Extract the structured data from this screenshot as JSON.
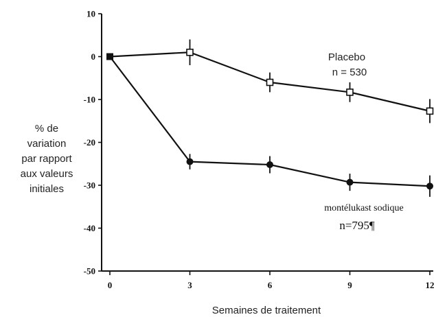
{
  "chart_data": {
    "type": "line",
    "xlabel": "Semaines de traitement",
    "ylabel_lines": [
      "% de",
      "variation",
      "par rapport",
      "aux valeurs",
      "initiales"
    ],
    "x_ticks": [
      0,
      3,
      6,
      9,
      12
    ],
    "y_ticks": [
      10,
      0,
      -10,
      -20,
      -30,
      -40,
      -50
    ],
    "xlim": [
      0,
      12
    ],
    "ylim": [
      -50,
      10
    ],
    "grid": false,
    "series": [
      {
        "label_lines": [
          "Placebo",
          "n = 530"
        ],
        "marker": "open-square",
        "x": [
          0,
          3,
          6,
          9,
          12
        ],
        "y": [
          0,
          1,
          -6,
          -8.3,
          -12.7
        ],
        "err": [
          0,
          3,
          2.3,
          2.3,
          2.8
        ]
      },
      {
        "label_lines": [
          "montélukast sodique",
          "n=795¶"
        ],
        "marker": "filled-circle",
        "x": [
          0,
          3,
          6,
          9,
          12
        ],
        "y": [
          0,
          -24.5,
          -25.2,
          -29.3,
          -30.2
        ],
        "err": [
          0,
          1.8,
          2,
          2,
          2.5
        ]
      }
    ]
  }
}
